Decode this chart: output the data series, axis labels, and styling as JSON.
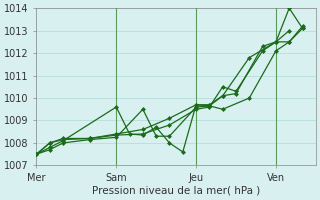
{
  "background_color": "#d8f0f0",
  "grid_color": "#b0d8d8",
  "line_color": "#1a6b1a",
  "marker_color": "#1a6b1a",
  "xlabel": "Pression niveau de la mer( hPa )",
  "ylim": [
    1007,
    1014
  ],
  "yticks": [
    1007,
    1008,
    1009,
    1010,
    1011,
    1012,
    1013,
    1014
  ],
  "day_labels": [
    "Mer",
    "Sam",
    "Jeu",
    "Ven"
  ],
  "day_positions": [
    0,
    3,
    6,
    9
  ],
  "vline_positions": [
    3,
    6,
    9
  ],
  "series": [
    {
      "x": [
        0,
        0.5,
        1.0,
        2.0,
        3.0,
        4.0,
        4.5,
        5.0,
        6.0,
        6.5,
        7.0,
        8.0,
        9.0,
        9.5,
        10.0
      ],
      "y": [
        1007.5,
        1007.7,
        1008.0,
        1008.15,
        1008.25,
        1009.5,
        1008.3,
        1008.3,
        1009.6,
        1009.65,
        1009.5,
        1010.0,
        1012.1,
        1012.5,
        1013.1
      ]
    },
    {
      "x": [
        0,
        0.5,
        1.0,
        3.0,
        3.5,
        4.0,
        4.5,
        5.0,
        5.5,
        6.0,
        6.5,
        7.0,
        8.0,
        9.0,
        9.5,
        10.0
      ],
      "y": [
        1007.5,
        1007.8,
        1008.1,
        1009.6,
        1008.4,
        1008.35,
        1008.7,
        1008.0,
        1007.6,
        1009.7,
        1009.7,
        1010.1,
        1011.8,
        1012.5,
        1012.5,
        1013.2
      ]
    },
    {
      "x": [
        0,
        0.5,
        1.0,
        2.0,
        3.0,
        4.0,
        5.0,
        6.0,
        6.5,
        7.0,
        7.5,
        8.5,
        9.0,
        9.5
      ],
      "y": [
        1007.5,
        1008.0,
        1008.2,
        1008.2,
        1008.35,
        1008.4,
        1008.8,
        1009.5,
        1009.6,
        1010.5,
        1010.3,
        1012.1,
        1012.5,
        1013.0
      ]
    },
    {
      "x": [
        0,
        0.5,
        1.0,
        2.0,
        3.0,
        4.0,
        5.0,
        6.0,
        6.5,
        7.0,
        7.5,
        8.5,
        9.0,
        9.5,
        10.0
      ],
      "y": [
        1007.5,
        1008.0,
        1008.15,
        1008.2,
        1008.4,
        1008.6,
        1009.1,
        1009.7,
        1009.65,
        1010.1,
        1010.2,
        1012.3,
        1012.5,
        1014.0,
        1013.1
      ]
    }
  ]
}
